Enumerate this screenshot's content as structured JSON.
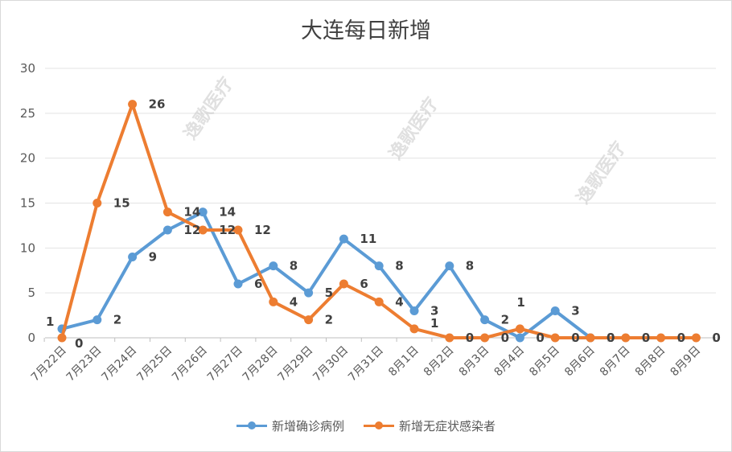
{
  "chart_data": {
    "type": "line",
    "title": "大连每日新增",
    "categories": [
      "7月22日",
      "7月23日",
      "7月24日",
      "7月25日",
      "7月26日",
      "7月27日",
      "7月28日",
      "7月29日",
      "7月30日",
      "7月31日",
      "8月1日",
      "8月2日",
      "8月3日",
      "8月4日",
      "8月5日",
      "8月6日",
      "8月7日",
      "8月8日",
      "8月9日"
    ],
    "ylim": [
      0,
      30
    ],
    "yticks": [
      "0",
      "5",
      "10",
      "15",
      "20",
      "25",
      "30"
    ],
    "grid": true,
    "legend_position": "bottom",
    "series": [
      {
        "name": "新增确诊病例",
        "color": "#5b9bd5",
        "values": [
          1,
          2,
          9,
          12,
          14,
          6,
          8,
          5,
          11,
          8,
          3,
          8,
          2,
          0,
          3,
          0,
          null,
          null,
          null
        ]
      },
      {
        "name": "新增无症状感染者",
        "color": "#ed7d31",
        "values": [
          0,
          15,
          26,
          14,
          12,
          12,
          4,
          2,
          6,
          4,
          1,
          0,
          0,
          1,
          0,
          0,
          0,
          0,
          0
        ]
      }
    ]
  },
  "watermark": "逸歌医疗"
}
